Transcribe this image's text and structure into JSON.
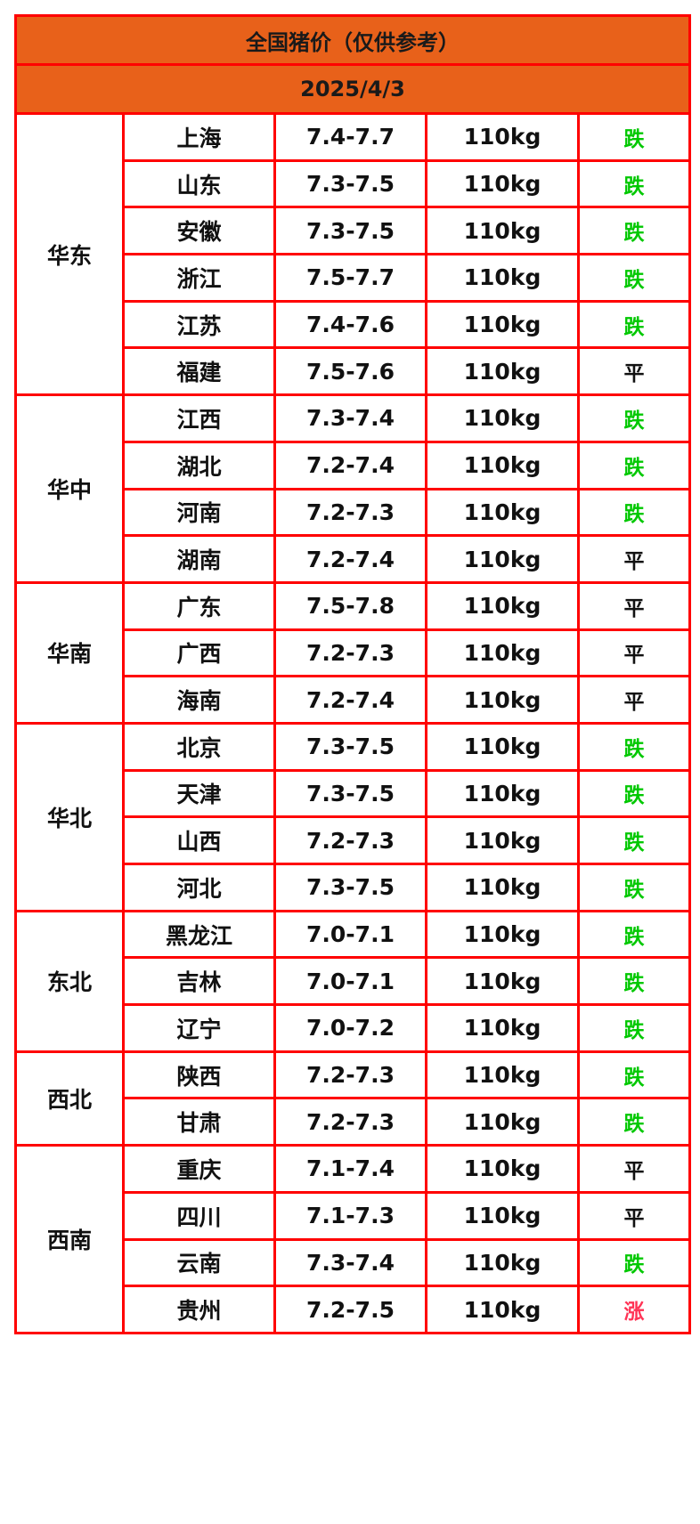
{
  "title": "全国猪价（仅供参考）",
  "date": "2025/4/3",
  "colors": {
    "header_bg": "#e8611a",
    "border": "#ff0000",
    "fall": "#00c800",
    "flat": "#111111",
    "rise": "#ff3355"
  },
  "regions": [
    {
      "name": "华东",
      "rows": [
        [
          "上海",
          "7.4-7.7",
          "110kg",
          "跌"
        ],
        [
          "山东",
          "7.3-7.5",
          "110kg",
          "跌"
        ],
        [
          "安徽",
          "7.3-7.5",
          "110kg",
          "跌"
        ],
        [
          "浙江",
          "7.5-7.7",
          "110kg",
          "跌"
        ],
        [
          "江苏",
          "7.4-7.6",
          "110kg",
          "跌"
        ],
        [
          "福建",
          "7.5-7.6",
          "110kg",
          "平"
        ]
      ]
    },
    {
      "name": "华中",
      "rows": [
        [
          "江西",
          "7.3-7.4",
          "110kg",
          "跌"
        ],
        [
          "湖北",
          "7.2-7.4",
          "110kg",
          "跌"
        ],
        [
          "河南",
          "7.2-7.3",
          "110kg",
          "跌"
        ],
        [
          "湖南",
          "7.2-7.4",
          "110kg",
          "平"
        ]
      ]
    },
    {
      "name": "华南",
      "rows": [
        [
          "广东",
          "7.5-7.8",
          "110kg",
          "平"
        ],
        [
          "广西",
          "7.2-7.3",
          "110kg",
          "平"
        ],
        [
          "海南",
          "7.2-7.4",
          "110kg",
          "平"
        ]
      ]
    },
    {
      "name": "华北",
      "rows": [
        [
          "北京",
          "7.3-7.5",
          "110kg",
          "跌"
        ],
        [
          "天津",
          "7.3-7.5",
          "110kg",
          "跌"
        ],
        [
          "山西",
          "7.2-7.3",
          "110kg",
          "跌"
        ],
        [
          "河北",
          "7.3-7.5",
          "110kg",
          "跌"
        ]
      ]
    },
    {
      "name": "东北",
      "rows": [
        [
          "黑龙江",
          "7.0-7.1",
          "110kg",
          "跌"
        ],
        [
          "吉林",
          "7.0-7.1",
          "110kg",
          "跌"
        ],
        [
          "辽宁",
          "7.0-7.2",
          "110kg",
          "跌"
        ]
      ]
    },
    {
      "name": "西北",
      "rows": [
        [
          "陕西",
          "7.2-7.3",
          "110kg",
          "跌"
        ],
        [
          "甘肃",
          "7.2-7.3",
          "110kg",
          "跌"
        ]
      ]
    },
    {
      "name": "西南",
      "rows": [
        [
          "重庆",
          "7.1-7.4",
          "110kg",
          "平"
        ],
        [
          "四川",
          "7.1-7.3",
          "110kg",
          "平"
        ],
        [
          "云南",
          "7.3-7.4",
          "110kg",
          "跌"
        ],
        [
          "贵州",
          "7.2-7.5",
          "110kg",
          "涨"
        ]
      ]
    }
  ]
}
